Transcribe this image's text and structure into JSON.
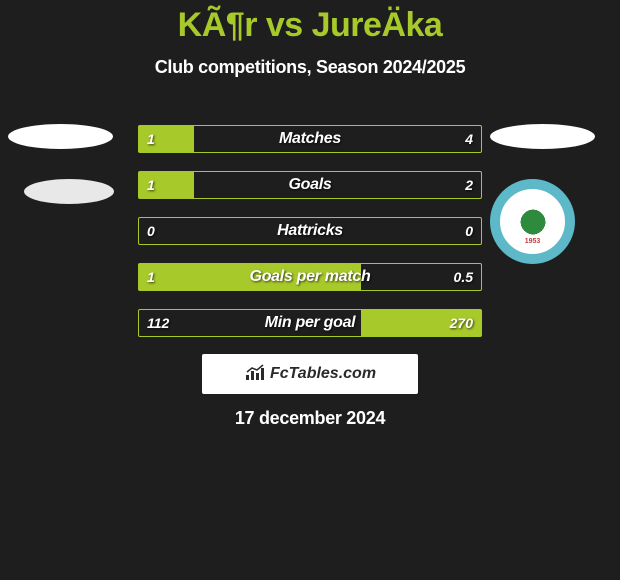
{
  "header": {
    "title": "KÃ¶r vs JureÄka",
    "subtitle": "Club competitions, Season 2024/2025"
  },
  "comparison": {
    "rows": [
      {
        "label": "Matches",
        "left_val": "1",
        "right_val": "4",
        "left_pct": 16,
        "right_pct": 0
      },
      {
        "label": "Goals",
        "left_val": "1",
        "right_val": "2",
        "left_pct": 16,
        "right_pct": 0
      },
      {
        "label": "Hattricks",
        "left_val": "0",
        "right_val": "0",
        "left_pct": 0,
        "right_pct": 0
      },
      {
        "label": "Goals per match",
        "left_val": "1",
        "right_val": "0.5",
        "left_pct": 65,
        "right_pct": 0
      },
      {
        "label": "Min per goal",
        "left_val": "112",
        "right_val": "270",
        "left_pct": 0,
        "right_pct": 35
      }
    ],
    "bar_color": "#a8c92a",
    "bar_border_color": "#a8c92a",
    "text_color": "#ffffff",
    "background_color": "#1e1e1e"
  },
  "right_club": {
    "ring_color": "#5db8c8",
    "center_color": "#2e8b3e",
    "year": "1953"
  },
  "footer": {
    "brand": "FcTables.com",
    "date": "17 december 2024"
  }
}
